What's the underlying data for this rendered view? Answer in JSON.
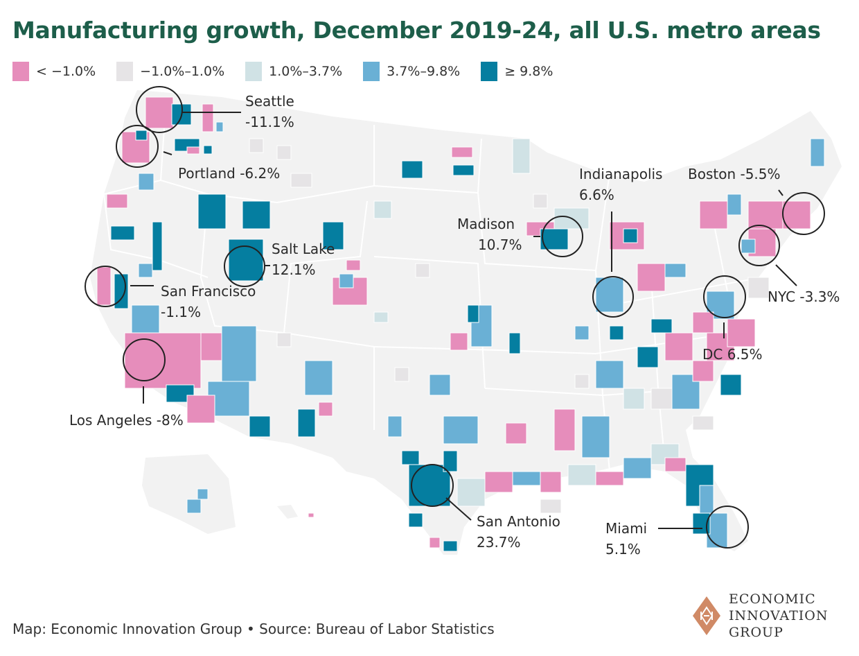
{
  "title": "Manufacturing growth, December 2019-24, all U.S. metro areas",
  "legend": [
    {
      "label": "< −1.0%",
      "color": "#e68dbb"
    },
    {
      "label": "−1.0%–1.0%",
      "color": "#e6e4e6"
    },
    {
      "label": "1.0%–3.7%",
      "color": "#d0e2e5"
    },
    {
      "label": "3.7%–9.8%",
      "color": "#6ab0d5"
    },
    {
      "label": "≥ 9.8%",
      "color": "#057ea0"
    }
  ],
  "colors": {
    "title": "#1d5e4a",
    "land": "#f2f2f2",
    "borders": "#ffffff",
    "callout_line": "#222222",
    "logo": "#d08a66"
  },
  "callouts": [
    {
      "name": "Seattle",
      "line1": "Seattle",
      "line2": "-11.1%",
      "value": -11.1
    },
    {
      "name": "Portland",
      "line1": "Portland -6.2%",
      "line2": "",
      "value": -6.2
    },
    {
      "name": "Salt Lake",
      "line1": "Salt Lake",
      "line2": "12.1%",
      "value": 12.1
    },
    {
      "name": "San Francisco",
      "line1": "San Francisco",
      "line2": "-1.1%",
      "value": -1.1
    },
    {
      "name": "Los Angeles",
      "line1": "Los Angeles -8%",
      "line2": "",
      "value": -8
    },
    {
      "name": "Madison",
      "line1": "Madison",
      "line2": "10.7%",
      "value": 10.7
    },
    {
      "name": "Indianapolis",
      "line1": "Indianapolis",
      "line2": "6.6%",
      "value": 6.6
    },
    {
      "name": "Boston",
      "line1": "Boston -5.5%",
      "line2": "",
      "value": -5.5
    },
    {
      "name": "NYC",
      "line1": "NYC -3.3%",
      "line2": "",
      "value": -3.3
    },
    {
      "name": "DC",
      "line1": "DC 6.5%",
      "line2": "",
      "value": 6.5
    },
    {
      "name": "San Antonio",
      "line1": "San Antonio",
      "line2": "23.7%",
      "value": 23.7
    },
    {
      "name": "Miami",
      "line1": "Miami",
      "line2": "5.1%",
      "value": 5.1
    }
  ],
  "footer": "Map: Economic Innovation Group • Source: Bureau of Labor Statistics",
  "logo": {
    "line1": "ECONOMIC",
    "line2": "INNOVATION",
    "line3": "GROUP"
  }
}
